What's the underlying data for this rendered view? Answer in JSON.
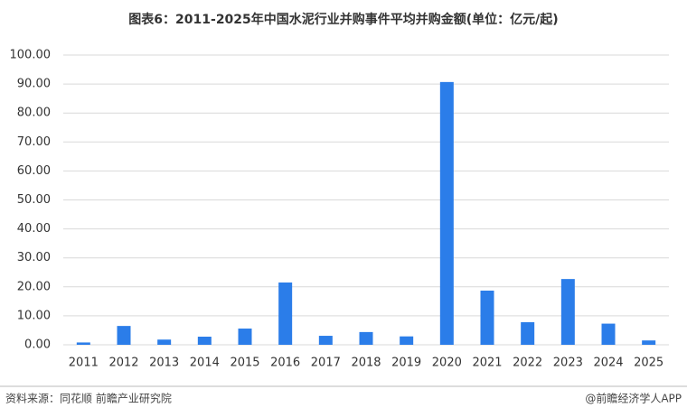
{
  "chart_data": {
    "type": "bar",
    "title": "图表6：2011-2025年中国水泥行业并购事件平均并购金额(单位：亿元/起)",
    "categories": [
      "2011",
      "2012",
      "2013",
      "2014",
      "2015",
      "2016",
      "2017",
      "2018",
      "2019",
      "2020",
      "2021",
      "2022",
      "2023",
      "2024",
      "2025"
    ],
    "values": [
      0.8,
      6.5,
      1.8,
      2.8,
      5.6,
      21.5,
      3.1,
      4.4,
      2.9,
      90.7,
      18.7,
      7.8,
      22.7,
      7.3,
      1.5
    ],
    "color": "#2b7de9",
    "ylim": [
      0,
      100
    ],
    "yticks": [
      {
        "value": 0,
        "label": "0.00"
      },
      {
        "value": 10,
        "label": "10.00"
      },
      {
        "value": 20,
        "label": "20.00"
      },
      {
        "value": 30,
        "label": "30.00"
      },
      {
        "value": 40,
        "label": "40.00"
      },
      {
        "value": 50,
        "label": "50.00"
      },
      {
        "value": 60,
        "label": "60.00"
      },
      {
        "value": 70,
        "label": "70.00"
      },
      {
        "value": 80,
        "label": "80.00"
      },
      {
        "value": 90,
        "label": "90.00"
      },
      {
        "value": 100,
        "label": "100.00"
      }
    ],
    "grid": true,
    "source": "资料来源：同花顺 前瞻产业研究院",
    "credit": "@前瞻经济学人APP"
  }
}
